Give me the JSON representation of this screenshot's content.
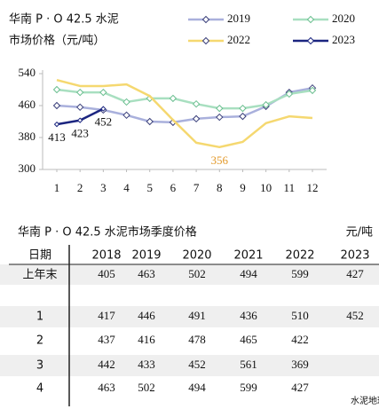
{
  "chart_data": {
    "type": "line",
    "title": [
      "华南 P · O 42.5 水泥",
      "市场价格（元/吨）"
    ],
    "x": [
      1,
      2,
      3,
      4,
      5,
      6,
      7,
      8,
      9,
      10,
      11,
      12
    ],
    "xlim": [
      1,
      12
    ],
    "xticks": [
      1,
      2,
      3,
      4,
      5,
      6,
      7,
      8,
      9,
      10,
      11,
      12
    ],
    "ylim": [
      300,
      540
    ],
    "yticks": [
      300,
      380,
      460,
      540
    ],
    "series": [
      {
        "name": "2019",
        "color": "#a9b0dc",
        "values": [
          460,
          456,
          449,
          436,
          420,
          418,
          427,
          431,
          433,
          458,
          493,
          504
        ]
      },
      {
        "name": "2020",
        "color": "#a8dfc0",
        "values": [
          500,
          493,
          493,
          469,
          478,
          478,
          464,
          453,
          453,
          462,
          489,
          498
        ]
      },
      {
        "name": "2022",
        "color": "#f5d870",
        "values": [
          524,
          509,
          509,
          513,
          484,
          424,
          367,
          356,
          369,
          416,
          433,
          429
        ]
      },
      {
        "name": "2023",
        "color": "#1b2580",
        "values": [
          413,
          423,
          452,
          null,
          null,
          null,
          null,
          null,
          null,
          null,
          null,
          null
        ]
      }
    ]
  },
  "table": {
    "title": "华南 P · O 42.5 水泥市场季度价格",
    "unit": "元/吨",
    "header": [
      "日期",
      "2018",
      "2019",
      "2020",
      "2021",
      "2022",
      "2023"
    ],
    "rows": [
      [
        "上年末",
        405,
        463,
        502,
        494,
        599,
        427
      ],
      [
        "1",
        417,
        446,
        491,
        436,
        510,
        452
      ],
      [
        "2",
        437,
        416,
        478,
        465,
        422,
        null
      ],
      [
        "3",
        442,
        433,
        452,
        561,
        369,
        null
      ],
      [
        "4",
        463,
        502,
        494,
        599,
        427,
        null
      ]
    ]
  },
  "watermark": "水泥地理"
}
